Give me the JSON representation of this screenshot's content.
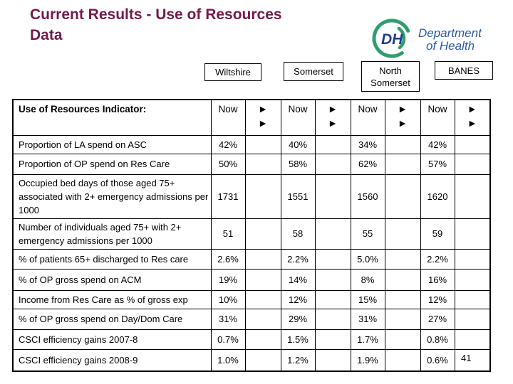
{
  "slide": {
    "title_line1": "Current Results - Use of Resources",
    "title_line2": "Data",
    "page_number": "41"
  },
  "logo": {
    "mark": "DH",
    "org_line1": "Department",
    "org_line2": "of Health",
    "green": "#2f9e6e",
    "blue_dark": "#1e3e91",
    "blue_text": "#2a5ba6"
  },
  "regions": [
    "Wiltshire",
    "Somerset",
    "North Somerset",
    "BANES"
  ],
  "table": {
    "indicator_header": "Use of Resources Indicator:",
    "now_label": "Now",
    "trend_arrow": "►",
    "rows": [
      {
        "label": "Proportion of LA spend on ASC",
        "values": [
          "42%",
          "40%",
          "34%",
          "42%"
        ]
      },
      {
        "label": "Proportion of OP spend on Res Care",
        "values": [
          "50%",
          "58%",
          "62%",
          "57%"
        ]
      },
      {
        "label": "Occupied bed days of those aged 75+ associated with 2+ emergency admissions per 1000",
        "values": [
          "1731",
          "1551",
          "1560",
          "1620"
        ]
      },
      {
        "label": "Number of individuals aged 75+ with 2+ emergency admissions per 1000",
        "values": [
          "51",
          "58",
          "55",
          "59"
        ]
      },
      {
        "label": "% of patients 65+ discharged to Res care",
        "values": [
          "2.6%",
          "2.2%",
          "5.0%",
          "2.2%"
        ]
      },
      {
        "label": "% of OP gross spend on ACM",
        "values": [
          "19%",
          "14%",
          "8%",
          "16%"
        ]
      },
      {
        "label": "Income from Res Care as % of gross exp",
        "values": [
          "10%",
          "12%",
          "15%",
          "12%"
        ]
      },
      {
        "label": "% of OP gross spend on Day/Dom Care",
        "values": [
          "31%",
          "29%",
          "31%",
          "27%"
        ]
      },
      {
        "label": "CSCI efficiency gains 2007-8",
        "values": [
          "0.7%",
          "1.5%",
          "1.7%",
          "0.8%"
        ]
      },
      {
        "label": "CSCI efficiency gains 2008-9",
        "values": [
          "1.0%",
          "1.2%",
          "1.9%",
          "0.6%"
        ]
      }
    ]
  },
  "colors": {
    "title": "#731a4a",
    "border": "#000000"
  }
}
